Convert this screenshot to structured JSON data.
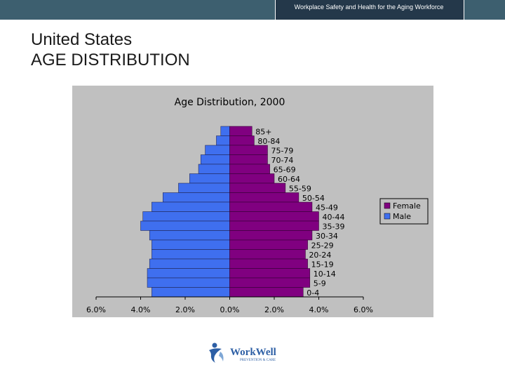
{
  "header": {
    "text": "Workplace Safety and Health for the Aging Workforce"
  },
  "slide": {
    "title_line1": "United States",
    "title_line2": "AGE DISTRIBUTION"
  },
  "logo": {
    "text_main": "WorkWell",
    "text_sub": "PREVENTION & CARE"
  },
  "colors": {
    "female": "#800080",
    "male": "#3f6fef",
    "header_bg": "#3d5f6f",
    "header_dark": "#24384a",
    "chart_bg": "#c0c0c0"
  },
  "chart_data": {
    "type": "bar",
    "title": "Age Distribution, 2000",
    "orientation": "horizontal",
    "layout": "population-pyramid",
    "categories": [
      "85+",
      "80-84",
      "75-79",
      "70-74",
      "65-69",
      "60-64",
      "55-59",
      "50-54",
      "45-49",
      "40-44",
      "35-39",
      "30-34",
      "25-29",
      "20-24",
      "15-19",
      "10-14",
      "5-9",
      "0-4"
    ],
    "series": [
      {
        "name": "Female",
        "side": "right",
        "values": [
          1.0,
          1.1,
          1.7,
          1.7,
          1.8,
          2.0,
          2.5,
          3.1,
          3.7,
          4.0,
          4.0,
          3.7,
          3.5,
          3.4,
          3.5,
          3.6,
          3.6,
          3.3
        ]
      },
      {
        "name": "Male",
        "side": "left",
        "values": [
          0.4,
          0.6,
          1.1,
          1.3,
          1.4,
          1.8,
          2.3,
          3.0,
          3.5,
          3.9,
          4.0,
          3.6,
          3.5,
          3.5,
          3.6,
          3.7,
          3.7,
          3.5
        ]
      }
    ],
    "xlim": [
      -6,
      6
    ],
    "x_ticks": [
      "6.0%",
      "4.0%",
      "2.0%",
      "0.0%",
      "2.0%",
      "4.0%",
      "6.0%"
    ],
    "grid": false,
    "legend": "right"
  }
}
